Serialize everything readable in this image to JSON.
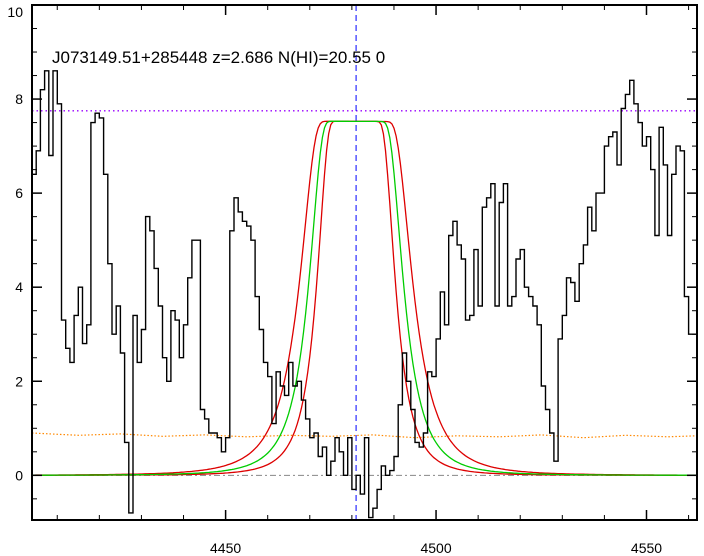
{
  "chart_data": {
    "type": "line",
    "title": "J073149.51+285448 z=2.686 N(HI)=20.55 0",
    "xlabel": "",
    "ylabel": "",
    "xlim": [
      4404,
      4562
    ],
    "ylim": [
      -0.95,
      10
    ],
    "xticks": [
      4450,
      4500,
      4550
    ],
    "yticks": [
      0,
      2,
      4,
      6,
      8,
      10
    ],
    "grid": false,
    "legend": "none",
    "colors": {
      "spectrum": "#000000",
      "fit": "#00cc00",
      "fit_bounds": "#dd0000",
      "center_line": "#0000ff",
      "continuum": "#9900ff",
      "error": "#ff8800",
      "zero_line": "#888888"
    },
    "center_wavelength": 4481,
    "continuum_level": 7.75,
    "zero_level": 0,
    "fit_model": {
      "continuum_start": 7.55,
      "continuum_end": 7.5,
      "center": 4481,
      "best_half_width": 10.6,
      "lower_half_width": 8.8,
      "upper_half_width": 12.7
    },
    "spectrum_steps": [
      [
        4404,
        6.4
      ],
      [
        4405,
        6.9
      ],
      [
        4406,
        8.2
      ],
      [
        4407,
        8.6
      ],
      [
        4408,
        6.8
      ],
      [
        4409,
        8.6
      ],
      [
        4410,
        7.9
      ],
      [
        4411,
        3.3
      ],
      [
        4412,
        2.7
      ],
      [
        4413,
        2.4
      ],
      [
        4414,
        3.4
      ],
      [
        4415,
        4.0
      ],
      [
        4416,
        2.8
      ],
      [
        4417,
        3.2
      ],
      [
        4418,
        7.5
      ],
      [
        4419,
        7.7
      ],
      [
        4420,
        7.6
      ],
      [
        4421,
        6.4
      ],
      [
        4422,
        4.5
      ],
      [
        4423,
        3.0
      ],
      [
        4424,
        3.6
      ],
      [
        4425,
        2.6
      ],
      [
        4426,
        0.7
      ],
      [
        4427,
        -0.8
      ],
      [
        4428,
        3.4
      ],
      [
        4429,
        2.4
      ],
      [
        4430,
        3.1
      ],
      [
        4431,
        5.5
      ],
      [
        4432,
        5.2
      ],
      [
        4433,
        4.4
      ],
      [
        4434,
        3.6
      ],
      [
        4435,
        2.5
      ],
      [
        4436,
        2.0
      ],
      [
        4437,
        3.5
      ],
      [
        4438,
        3.3
      ],
      [
        4439,
        2.5
      ],
      [
        4440,
        3.2
      ],
      [
        4441,
        4.2
      ],
      [
        4442,
        5.0
      ],
      [
        4443,
        5.0
      ],
      [
        4444,
        1.4
      ],
      [
        4445,
        1.2
      ],
      [
        4446,
        0.9
      ],
      [
        4447,
        0.9
      ],
      [
        4448,
        0.8
      ],
      [
        4449,
        0.5
      ],
      [
        4450,
        0.8
      ],
      [
        4451,
        5.2
      ],
      [
        4452,
        5.9
      ],
      [
        4453,
        5.6
      ],
      [
        4454,
        5.4
      ],
      [
        4455,
        5.3
      ],
      [
        4456,
        5.0
      ],
      [
        4457,
        3.8
      ],
      [
        4458,
        3.1
      ],
      [
        4459,
        2.4
      ],
      [
        4460,
        2.1
      ],
      [
        4461,
        1.1
      ],
      [
        4462,
        2.2
      ],
      [
        4463,
        1.9
      ],
      [
        4464,
        1.7
      ],
      [
        4465,
        2.4
      ],
      [
        4466,
        1.9
      ],
      [
        4467,
        2.0
      ],
      [
        4468,
        1.6
      ],
      [
        4469,
        1.2
      ],
      [
        4470,
        0.8
      ],
      [
        4471,
        0.9
      ],
      [
        4472,
        0.4
      ],
      [
        4473,
        0.6
      ],
      [
        4474,
        0.0
      ],
      [
        4475,
        0.3
      ],
      [
        4476,
        0.8
      ],
      [
        4477,
        0.5
      ],
      [
        4478,
        0.0
      ],
      [
        4479,
        0.8
      ],
      [
        4480,
        -0.3
      ],
      [
        4481,
        0.0
      ],
      [
        4482,
        -0.4
      ],
      [
        4483,
        0.8
      ],
      [
        4484,
        -0.9
      ],
      [
        4485,
        -0.7
      ],
      [
        4486,
        -0.3
      ],
      [
        4487,
        0.2
      ],
      [
        4488,
        0.0
      ],
      [
        4489,
        0.1
      ],
      [
        4490,
        0.4
      ],
      [
        4491,
        1.5
      ],
      [
        4492,
        2.6
      ],
      [
        4493,
        2.0
      ],
      [
        4494,
        1.4
      ],
      [
        4495,
        0.7
      ],
      [
        4496,
        0.6
      ],
      [
        4497,
        0.9
      ],
      [
        4498,
        2.2
      ],
      [
        4499,
        2.1
      ],
      [
        4500,
        2.9
      ],
      [
        4501,
        3.9
      ],
      [
        4502,
        3.2
      ],
      [
        4503,
        5.1
      ],
      [
        4504,
        5.4
      ],
      [
        4505,
        4.9
      ],
      [
        4506,
        4.6
      ],
      [
        4507,
        3.3
      ],
      [
        4508,
        3.4
      ],
      [
        4509,
        4.8
      ],
      [
        4510,
        3.6
      ],
      [
        4511,
        5.7
      ],
      [
        4512,
        5.9
      ],
      [
        4513,
        6.2
      ],
      [
        4514,
        3.6
      ],
      [
        4515,
        5.8
      ],
      [
        4516,
        6.2
      ],
      [
        4517,
        3.6
      ],
      [
        4518,
        3.8
      ],
      [
        4519,
        4.6
      ],
      [
        4520,
        4.8
      ],
      [
        4521,
        4.0
      ],
      [
        4522,
        3.8
      ],
      [
        4523,
        3.6
      ],
      [
        4524,
        3.2
      ],
      [
        4525,
        1.9
      ],
      [
        4526,
        1.4
      ],
      [
        4527,
        0.9
      ],
      [
        4528,
        0.3
      ],
      [
        4529,
        2.9
      ],
      [
        4530,
        3.4
      ],
      [
        4531,
        4.2
      ],
      [
        4532,
        4.1
      ],
      [
        4533,
        3.7
      ],
      [
        4534,
        4.5
      ],
      [
        4535,
        4.9
      ],
      [
        4536,
        5.7
      ],
      [
        4537,
        5.2
      ],
      [
        4538,
        6.0
      ],
      [
        4539,
        6.0
      ],
      [
        4540,
        7.0
      ],
      [
        4541,
        7.2
      ],
      [
        4542,
        7.3
      ],
      [
        4543,
        6.6
      ],
      [
        4544,
        7.8
      ],
      [
        4545,
        8.1
      ],
      [
        4546,
        8.4
      ],
      [
        4547,
        7.9
      ],
      [
        4548,
        7.5
      ],
      [
        4549,
        7.0
      ],
      [
        4550,
        7.2
      ],
      [
        4551,
        6.5
      ],
      [
        4552,
        5.1
      ],
      [
        4553,
        7.4
      ],
      [
        4554,
        6.6
      ],
      [
        4555,
        5.1
      ],
      [
        4556,
        6.4
      ],
      [
        4557,
        7.0
      ],
      [
        4558,
        6.9
      ],
      [
        4559,
        3.8
      ],
      [
        4560,
        3.0
      ],
      [
        4561,
        3.0
      ]
    ],
    "error_samples": [
      [
        4404,
        0.9
      ],
      [
        4415,
        0.85
      ],
      [
        4425,
        0.88
      ],
      [
        4435,
        0.83
      ],
      [
        4445,
        0.86
      ],
      [
        4455,
        0.82
      ],
      [
        4465,
        0.85
      ],
      [
        4475,
        0.83
      ],
      [
        4485,
        0.86
      ],
      [
        4495,
        0.8
      ],
      [
        4505,
        0.84
      ],
      [
        4515,
        0.82
      ],
      [
        4525,
        0.86
      ],
      [
        4535,
        0.8
      ],
      [
        4545,
        0.85
      ],
      [
        4555,
        0.82
      ],
      [
        4562,
        0.84
      ]
    ]
  }
}
